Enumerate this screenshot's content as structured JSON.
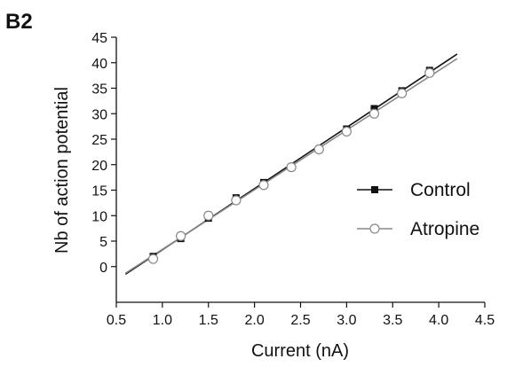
{
  "panel_label": "B2",
  "chart_data": {
    "type": "scatter",
    "title": "",
    "xlabel": "Current (nA)",
    "ylabel": "Nb of action potential",
    "xlim": [
      0.5,
      4.5
    ],
    "ylim": [
      -7,
      45
    ],
    "x_ticks": [
      "0.5",
      "1.0",
      "1.5",
      "2.0",
      "2.5",
      "3.0",
      "3.5",
      "4.0",
      "4.5"
    ],
    "y_ticks": [
      "0",
      "5",
      "10",
      "15",
      "20",
      "25",
      "30",
      "35",
      "40",
      "45"
    ],
    "grid": false,
    "legend_position": "right",
    "series": [
      {
        "name": "Control",
        "marker": "filled-square",
        "color": "#111111",
        "x": [
          0.9,
          1.2,
          1.5,
          1.8,
          2.1,
          2.4,
          3.0,
          3.3,
          3.6,
          3.9
        ],
        "y": [
          2,
          5.5,
          9.5,
          13.5,
          16.5,
          19.5,
          27,
          31,
          34.5,
          38.5
        ],
        "fit": {
          "x": [
            0.6,
            4.2
          ],
          "y": [
            -1.5,
            41.7
          ]
        }
      },
      {
        "name": "Atropine",
        "marker": "open-circle",
        "color": "#888888",
        "x": [
          0.9,
          1.2,
          1.5,
          1.8,
          2.1,
          2.4,
          2.7,
          3.0,
          3.3,
          3.6,
          3.9
        ],
        "y": [
          1.5,
          6,
          10,
          13,
          16,
          19.5,
          23,
          26.5,
          30,
          34,
          38
        ],
        "fit": {
          "x": [
            0.6,
            4.2
          ],
          "y": [
            -1.3,
            40.8
          ]
        }
      }
    ]
  }
}
